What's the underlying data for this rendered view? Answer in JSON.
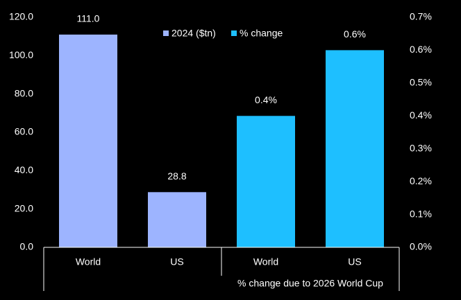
{
  "chart_data": {
    "type": "bar",
    "categories": [
      "World",
      "US",
      "World",
      "US"
    ],
    "group_label": "% change due to 2026 World Cup",
    "series": [
      {
        "name": "2024 ($tn)",
        "color": "#9db4ff",
        "values": [
          111.0,
          28.8,
          null,
          null
        ],
        "value_labels": [
          "111.0",
          "28.8",
          null,
          null
        ]
      },
      {
        "name": "% change",
        "color": "#1ebfff",
        "axis": "y2",
        "values": [
          null,
          null,
          0.4,
          0.6
        ],
        "value_labels": [
          null,
          null,
          "0.4%",
          "0.6%"
        ]
      }
    ],
    "ylim": [
      0,
      120
    ],
    "yticks": [
      {
        "value": 0,
        "label": "0.0"
      },
      {
        "value": 20,
        "label": "20.0"
      },
      {
        "value": 40,
        "label": "40.0"
      },
      {
        "value": 60,
        "label": "60.0"
      },
      {
        "value": 80,
        "label": "80.0"
      },
      {
        "value": 100,
        "label": "100.0"
      },
      {
        "value": 120,
        "label": "120.0"
      }
    ],
    "y2lim": [
      0,
      0.7
    ],
    "y2ticks": [
      {
        "value": 0,
        "label": "0.0%"
      },
      {
        "value": 0.1,
        "label": "0.1%"
      },
      {
        "value": 0.2,
        "label": "0.2%"
      },
      {
        "value": 0.3,
        "label": "0.3%"
      },
      {
        "value": 0.4,
        "label": "0.4%"
      },
      {
        "value": 0.5,
        "label": "0.5%"
      },
      {
        "value": 0.6,
        "label": "0.6%"
      },
      {
        "value": 0.7,
        "label": "0.7%"
      }
    ],
    "legend": "top"
  }
}
